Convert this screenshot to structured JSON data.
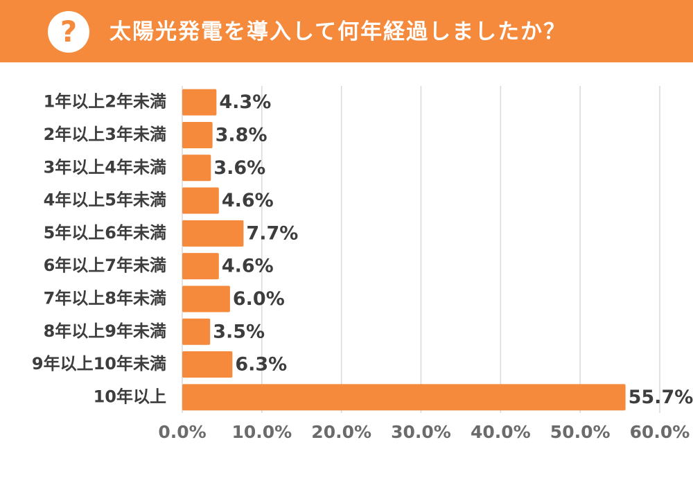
{
  "header": {
    "question_icon": "?",
    "title": "太陽光発電を導入して何年経過しましたか？",
    "bg_color": "#f58a3c"
  },
  "chart_data": {
    "type": "bar",
    "orientation": "horizontal",
    "categories": [
      "1年以上2年未満",
      "2年以上3年未満",
      "3年以上4年未満",
      "4年以上5年未満",
      "5年以上6年未満",
      "6年以上7年未満",
      "7年以上8年未満",
      "8年以上9年未満",
      "9年以上10年未満",
      "10年以上"
    ],
    "values": [
      4.3,
      3.8,
      3.6,
      4.6,
      7.7,
      4.6,
      6.0,
      3.5,
      6.3,
      55.7
    ],
    "value_labels": [
      "4.3%",
      "3.8%",
      "3.6%",
      "4.6%",
      "7.7%",
      "4.6%",
      "6.0%",
      "3.5%",
      "6.3%",
      "55.7%"
    ],
    "xlim": [
      0,
      60
    ],
    "x_ticks": [
      0,
      10,
      20,
      30,
      40,
      50,
      60
    ],
    "x_tick_labels": [
      "0.0%",
      "10.0%",
      "20.0%",
      "30.0%",
      "40.0%",
      "50.0%",
      "60.0%"
    ],
    "bar_color": "#f58a3c",
    "grid": true
  }
}
